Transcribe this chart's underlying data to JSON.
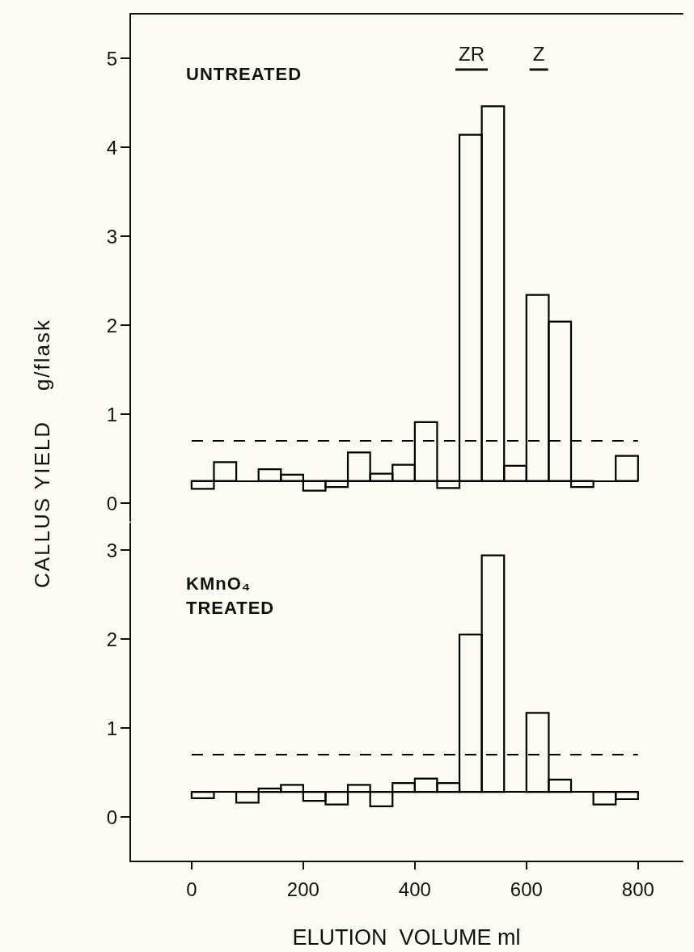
{
  "chart_data": [
    {
      "type": "bar",
      "ylabel": "CALLUS YIELD    g/flask",
      "x": [
        20,
        60,
        100,
        140,
        180,
        220,
        260,
        300,
        340,
        380,
        420,
        460,
        500,
        540,
        580,
        620,
        660,
        700,
        740,
        780
      ],
      "base": [
        0.25,
        0.25,
        null,
        0.25,
        0.25,
        0.25,
        0.25,
        0.25,
        0.25,
        0.25,
        0.25,
        0.25,
        0.25,
        0.25,
        0.25,
        0.25,
        0.25,
        0.25,
        null,
        0.25
      ],
      "values": [
        -0.09,
        0.21,
        null,
        0.13,
        0.07,
        -0.11,
        -0.07,
        0.32,
        0.08,
        0.18,
        0.66,
        -0.08,
        3.89,
        4.21,
        0.17,
        2.09,
        1.79,
        -0.07,
        null,
        0.28
      ],
      "color": "#000000",
      "xlim": [
        -110,
        880
      ],
      "ylim": [
        -0.2,
        5.5
      ],
      "yticks": [
        0,
        1,
        2,
        3,
        4,
        5
      ],
      "tick_labels": "y",
      "ref_lines": [
        {
          "axis": "y",
          "value": 0.25,
          "line_style": "solid",
          "color": "#000000"
        },
        {
          "axis": "y",
          "value": 0.7,
          "line_style": "dashed",
          "color": "#000000"
        }
      ],
      "annotations": [
        "UNTREATED",
        "ZR",
        "Z"
      ]
    },
    {
      "type": "bar",
      "xlabel": "ELUTION  VOLUME ml",
      "x": [
        20,
        60,
        100,
        140,
        180,
        220,
        260,
        300,
        340,
        380,
        420,
        460,
        500,
        540,
        580,
        620,
        660,
        700,
        740,
        780
      ],
      "base": [
        0.28,
        null,
        0.28,
        0.28,
        0.28,
        0.28,
        0.28,
        0.28,
        0.28,
        0.28,
        0.28,
        0.28,
        0.28,
        0.28,
        null,
        0.28,
        0.28,
        null,
        0.28,
        0.28
      ],
      "values": [
        -0.07,
        null,
        -0.12,
        0.04,
        0.08,
        -0.1,
        -0.14,
        0.08,
        -0.16,
        0.1,
        0.15,
        0.1,
        1.77,
        2.66,
        null,
        0.89,
        0.14,
        null,
        -0.14,
        -0.08
      ],
      "color": "#000000",
      "xlim": [
        -110,
        880
      ],
      "ylim": [
        -0.5,
        3.3
      ],
      "xticks": [
        0,
        200,
        400,
        600,
        800
      ],
      "yticks": [
        0,
        1,
        2,
        3
      ],
      "ref_lines": [
        {
          "axis": "y",
          "value": 0.28,
          "line_style": "solid",
          "color": "#000000"
        },
        {
          "axis": "y",
          "value": 0.7,
          "line_style": "dashed",
          "color": "#000000"
        }
      ],
      "annotations": [
        "KMnO₄\nTREATED"
      ]
    }
  ]
}
